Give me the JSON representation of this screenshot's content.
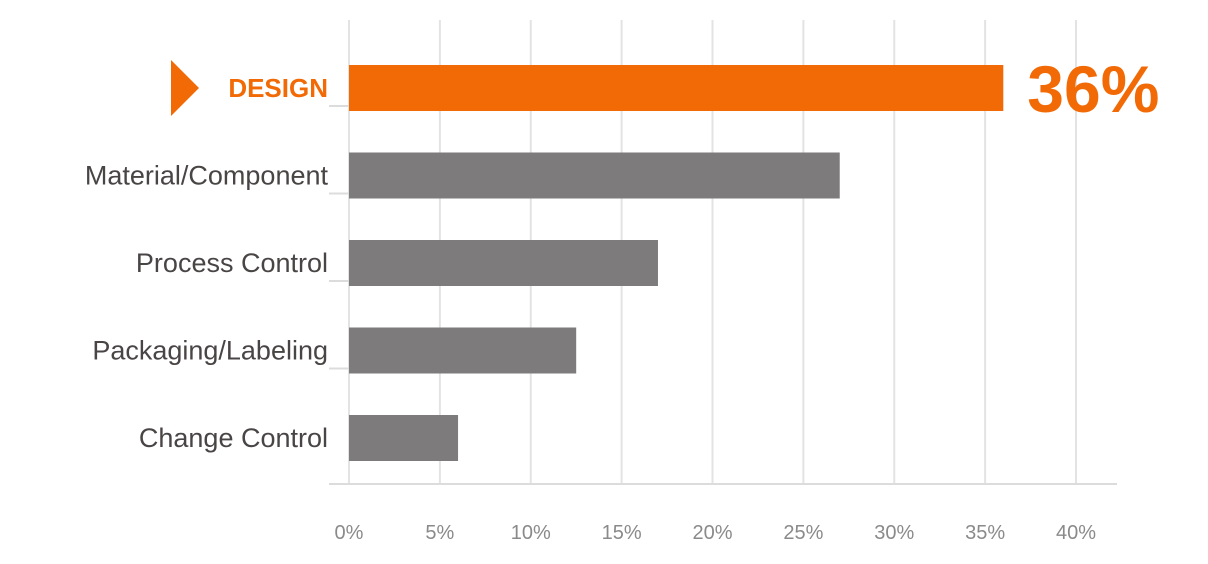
{
  "chart_data": {
    "type": "bar",
    "orientation": "horizontal",
    "categories": [
      "DESIGN",
      "Material/Component",
      "Process Control",
      "Packaging/Labeling",
      "Change Control"
    ],
    "values": [
      36,
      27,
      17,
      12.5,
      6
    ],
    "highlight": {
      "category": "DESIGN",
      "value_label": "36%"
    },
    "x_ticks": [
      "0%",
      "5%",
      "10%",
      "15%",
      "20%",
      "25%",
      "30%",
      "35%",
      "40%"
    ],
    "xlim": [
      0,
      42
    ],
    "grid": true,
    "legend": "none",
    "colors": {
      "highlight": "#f26a06",
      "bar": "#7d7b7b",
      "category_label": "#4a4545",
      "tick_label": "#8a8a8a",
      "grid": "#e3e3e3"
    }
  }
}
